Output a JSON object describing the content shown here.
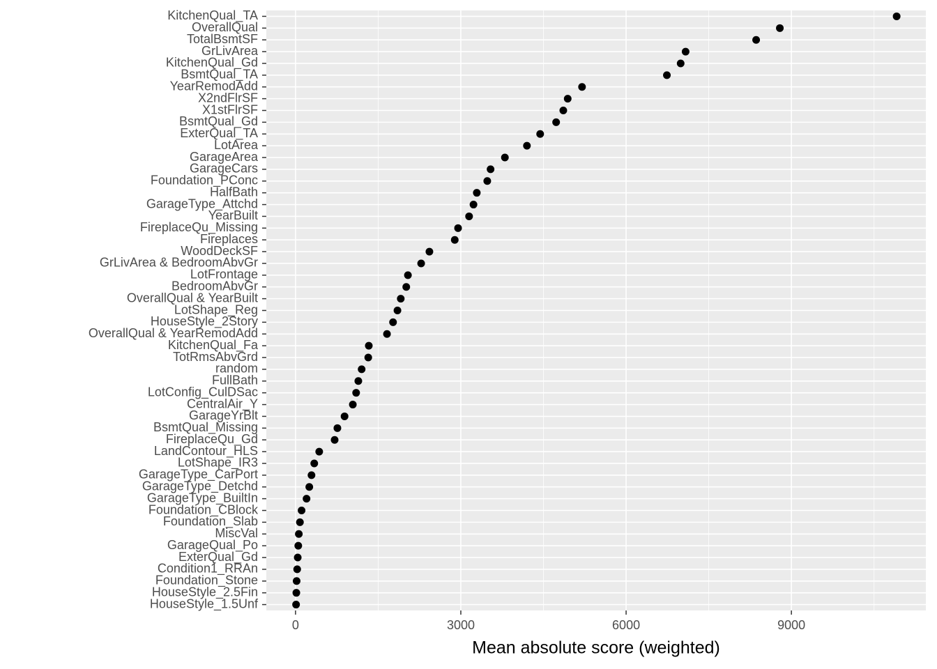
{
  "chart_data": {
    "type": "dot",
    "x_label": "Mean absolute score (weighted)",
    "categories": [
      "KitchenQual_TA",
      "OverallQual",
      "TotalBsmtSF",
      "GrLivArea",
      "KitchenQual_Gd",
      "BsmtQual_TA",
      "YearRemodAdd",
      "X2ndFlrSF",
      "X1stFlrSF",
      "BsmtQual_Gd",
      "ExterQual_TA",
      "LotArea",
      "GarageArea",
      "GarageCars",
      "Foundation_PConc",
      "HalfBath",
      "GarageType_Attchd",
      "YearBuilt",
      "FireplaceQu_Missing",
      "Fireplaces",
      "WoodDeckSF",
      "GrLivArea & BedroomAbvGr",
      "LotFrontage",
      "BedroomAbvGr",
      "OverallQual & YearBuilt",
      "LotShape_Reg",
      "HouseStyle_2Story",
      "OverallQual & YearRemodAdd",
      "KitchenQual_Fa",
      "TotRmsAbvGrd",
      "random",
      "FullBath",
      "LotConfig_CulDSac",
      "CentralAir_Y",
      "GarageYrBlt",
      "BsmtQual_Missing",
      "FireplaceQu_Gd",
      "LandContour_HLS",
      "LotShape_IR3",
      "GarageType_CarPort",
      "GarageType_Detchd",
      "GarageType_BuiltIn",
      "Foundation_CBlock",
      "Foundation_Slab",
      "MiscVal",
      "GarageQual_Po",
      "ExterQual_Gd",
      "Condition1_RRAn",
      "Foundation_Stone",
      "HouseStyle_2.5Fin",
      "HouseStyle_1.5Unf"
    ],
    "values": [
      10910,
      8790,
      8360,
      7080,
      6990,
      6740,
      5200,
      4940,
      4860,
      4730,
      4440,
      4200,
      3800,
      3540,
      3480,
      3290,
      3230,
      3150,
      2950,
      2890,
      2430,
      2280,
      2040,
      2010,
      1910,
      1850,
      1770,
      1660,
      1330,
      1320,
      1200,
      1140,
      1100,
      1040,
      890,
      760,
      710,
      430,
      340,
      290,
      250,
      200,
      110,
      80,
      60,
      50,
      40,
      30,
      20,
      15,
      10
    ],
    "color": "#000000",
    "xlim": [
      -530,
      11440
    ],
    "xticks": [
      0,
      3000,
      6000,
      9000
    ],
    "x_minor_grid": [
      1500,
      4500,
      7500,
      10500
    ],
    "grid": true
  }
}
